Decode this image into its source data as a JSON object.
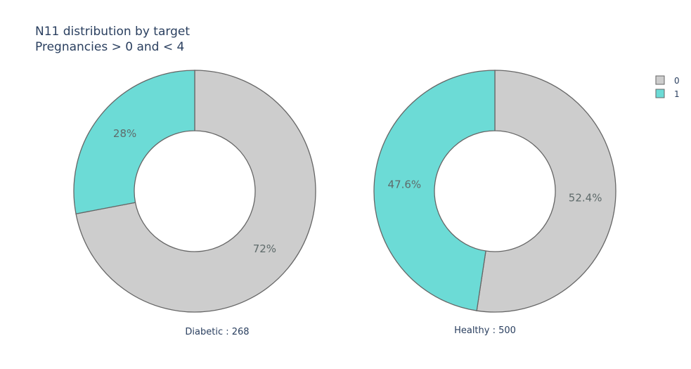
{
  "chart_data": {
    "type": "pie",
    "title": "N11 distribution by target",
    "subtitle": "Pregnancies > 0 and < 4",
    "hole": 0.5,
    "legend_placement": "top-right",
    "legend": [
      {
        "label": "0",
        "color": "#cdcdcd"
      },
      {
        "label": "1",
        "color": "#6cdbd6"
      }
    ],
    "charts": [
      {
        "caption": "Diabetic : 268",
        "slices": [
          {
            "category": "0",
            "percent": 72,
            "label": "72%",
            "color": "#cdcdcd"
          },
          {
            "category": "1",
            "percent": 28,
            "label": "28%",
            "color": "#6cdbd6"
          }
        ]
      },
      {
        "caption": "Healthy : 500",
        "slices": [
          {
            "category": "0",
            "percent": 52.4,
            "label": "52.4%",
            "color": "#cdcdcd"
          },
          {
            "category": "1",
            "percent": 47.6,
            "label": "47.6%",
            "color": "#6cdbd6"
          }
        ]
      }
    ]
  }
}
